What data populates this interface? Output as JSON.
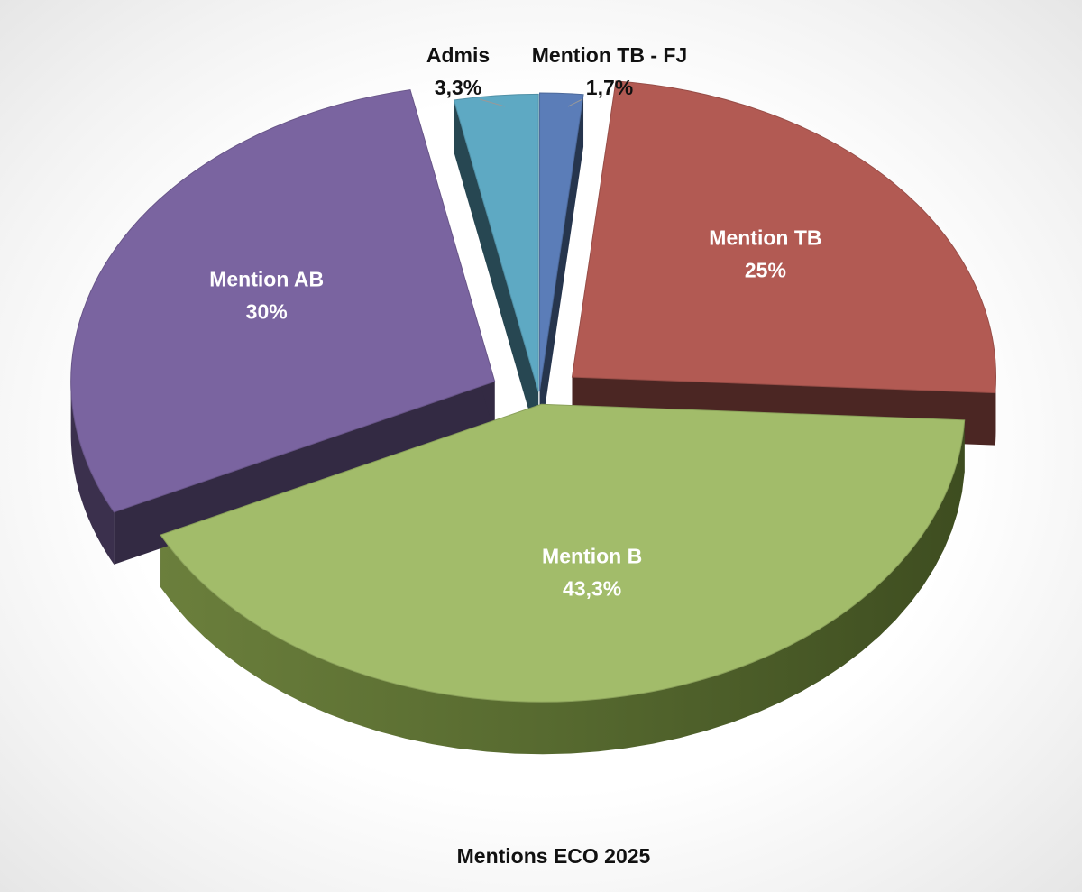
{
  "chart_data": {
    "type": "pie",
    "style": "3d-exploded",
    "title": "Mentions ECO 2025",
    "legend": "none",
    "slices": [
      {
        "label": "Mention TB - FJ",
        "value": 1.7,
        "value_label": "1,7%",
        "color": "#5B7DB8",
        "label_outside": true
      },
      {
        "label": "Mention TB",
        "value": 25,
        "value_label": "25%",
        "color": "#B25A53",
        "label_outside": false
      },
      {
        "label": "Mention B",
        "value": 43.3,
        "value_label": "43,3%",
        "color": "#A2BC6A",
        "label_outside": false
      },
      {
        "label": "Mention AB",
        "value": 30,
        "value_label": "30%",
        "color": "#7A64A0",
        "label_outside": false
      },
      {
        "label": "Admis",
        "value": 3.3,
        "value_label": "3,3%",
        "color": "#5EA9C3",
        "label_outside": true
      }
    ]
  }
}
